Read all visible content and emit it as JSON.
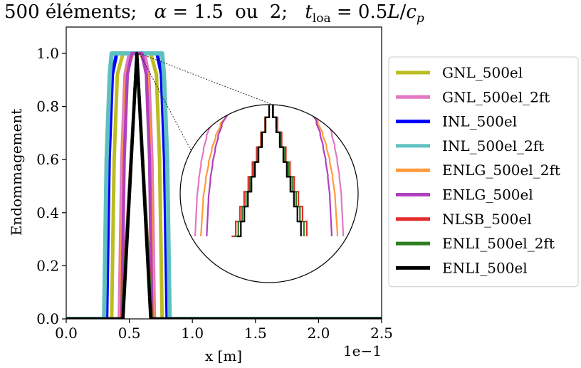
{
  "chart_data": {
    "type": "line",
    "title": {
      "prefix": "500 éléments;",
      "alpha_symbol": "α",
      "alpha_eq": " = 1.5",
      "ou": "ou",
      "two": "2;",
      "t_symbol": "t",
      "t_sub": "loa",
      "t_eq": " = 0.5",
      "t_L": "L",
      "t_slash": "/",
      "t_c": "c",
      "t_csub": "p"
    },
    "xlabel": "x [m]",
    "ylabel": "Endommagement",
    "x_offset_label": "1e−1",
    "xlim": [
      0.0,
      2.5
    ],
    "ylim": [
      0.0,
      1.05
    ],
    "xticks": [
      0.0,
      0.5,
      1.0,
      1.5,
      2.0,
      2.5
    ],
    "xtick_labels": [
      "0.0",
      "0.5",
      "1.0",
      "1.5",
      "2.0",
      "2.5"
    ],
    "yticks": [
      0.0,
      0.2,
      0.4,
      0.6,
      0.8,
      1.0
    ],
    "ytick_labels": [
      "0.0",
      "0.2",
      "0.4",
      "0.6",
      "0.8",
      "1.0"
    ],
    "grid": false,
    "legend_position": "right-outside",
    "inset": "circular zoom of the peak region",
    "series": [
      {
        "name": "GNL_500el",
        "color": "#bcbd22",
        "width": 5,
        "xl": 0.36,
        "xr": 0.76,
        "xpl": 0.45,
        "xpr": 0.67,
        "shape": "trapezoid"
      },
      {
        "name": "GNL_500el_2ft",
        "color": "#e377c2",
        "width": 4.5,
        "xl": 0.42,
        "xr": 0.7,
        "xpl": 0.5,
        "xpr": 0.62,
        "shape": "trapezoid"
      },
      {
        "name": "INL_500el",
        "color": "#0000ff",
        "width": 5,
        "xl": 0.32,
        "xr": 0.8,
        "xpl": 0.4,
        "xpr": 0.72,
        "shape": "trapezoid"
      },
      {
        "name": "INL_500el_2ft",
        "color": "#5fc0c0",
        "width": 6,
        "xl": 0.3,
        "xr": 0.82,
        "xpl": 0.36,
        "xpr": 0.76,
        "shape": "trapezoid"
      },
      {
        "name": "ENLG_500el_2ft",
        "color": "#ff9a3c",
        "width": 4,
        "xl": 0.43,
        "xr": 0.69,
        "xpl": 0.53,
        "xpr": 0.59,
        "shape": "trapezoid"
      },
      {
        "name": "ENLG_500el",
        "color": "#b040c0",
        "width": 4.5,
        "xl": 0.44,
        "xr": 0.68,
        "xpl": 0.52,
        "xpr": 0.6,
        "shape": "trapezoid"
      },
      {
        "name": "NLSB_500el",
        "color": "#e32c2c",
        "width": 4,
        "xl": 0.44,
        "xr": 0.68,
        "xpl": 0.56,
        "xpr": 0.56,
        "shape": "triangle"
      },
      {
        "name": "ENLI_500el_2ft",
        "color": "#2e7d20",
        "width": 4.5,
        "xl": 0.445,
        "xr": 0.675,
        "xpl": 0.56,
        "xpr": 0.56,
        "shape": "triangle"
      },
      {
        "name": "ENLI_500el",
        "color": "#000000",
        "width": 4.5,
        "xl": 0.45,
        "xr": 0.67,
        "xpl": 0.56,
        "xpr": 0.56,
        "shape": "triangle"
      }
    ]
  }
}
